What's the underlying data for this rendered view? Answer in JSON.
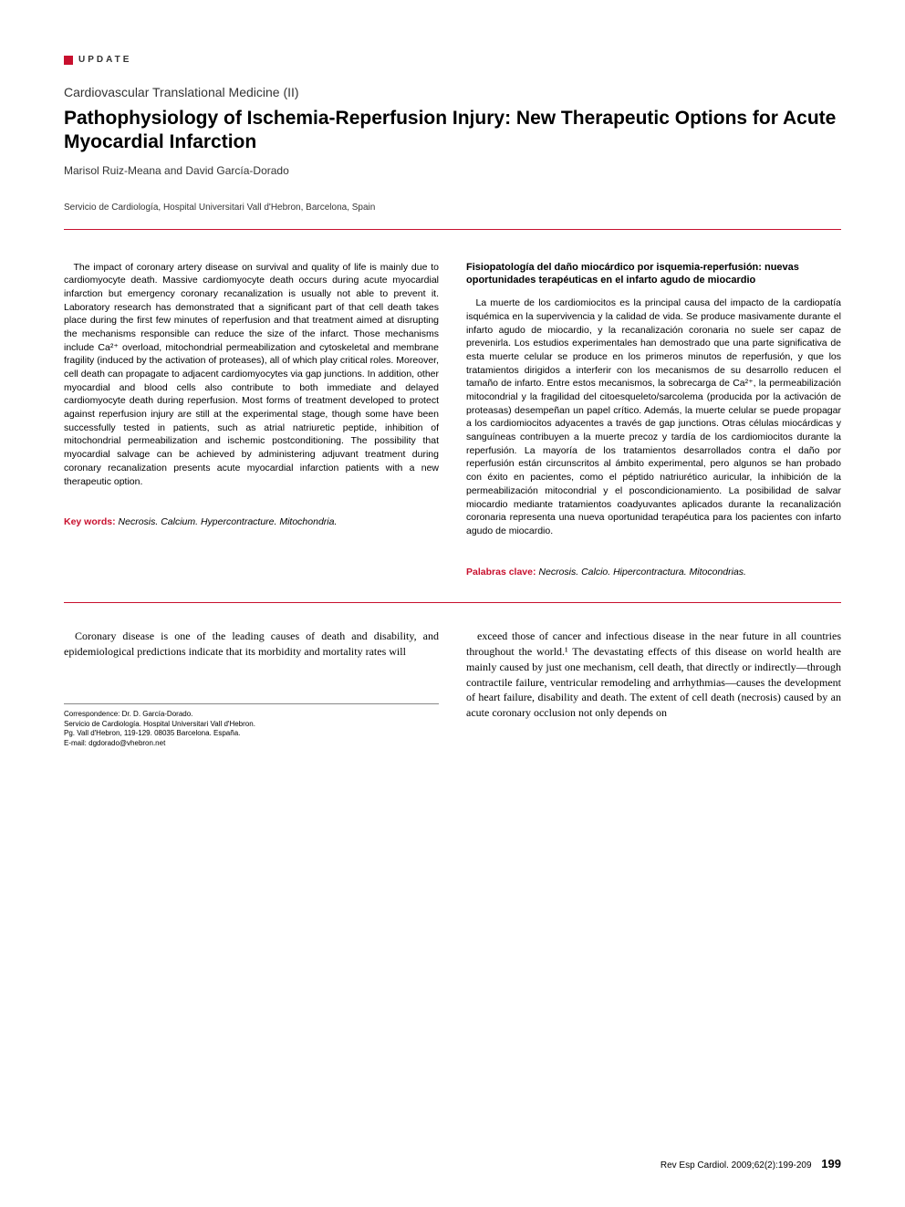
{
  "colors": {
    "accent": "#c8102e",
    "text": "#000000",
    "text_muted": "#333333",
    "rule": "#c8102e",
    "bg": "#ffffff"
  },
  "typography": {
    "sans": "Arial, Helvetica, sans-serif",
    "serif": "Georgia, 'Times New Roman', serif",
    "section_label_size": 10,
    "series_title_size": 14,
    "article_title_size": 21,
    "abstract_size": 10.5,
    "body_size": 12
  },
  "header": {
    "section_label": "UPDATE",
    "series_title": "Cardiovascular Translational Medicine (II)",
    "article_title": "Pathophysiology of Ischemia-Reperfusion Injury: New Therapeutic Options for Acute Myocardial Infarction",
    "authors": "Marisol Ruiz-Meana and David García-Dorado",
    "affiliation": "Servicio de Cardiología, Hospital Universitari Vall d'Hebron, Barcelona, Spain"
  },
  "abstract_en": {
    "text": "The impact of coronary artery disease on survival and quality of life is mainly due to cardiomyocyte death. Massive cardiomyocyte death occurs during acute myocardial infarction but emergency coronary recanalization is usually not able to prevent it. Laboratory research has demonstrated that a significant part of that cell death takes place during the first few minutes of reperfusion and that treatment aimed at disrupting the mechanisms responsible can reduce the size of the infarct. Those mechanisms include Ca²⁺ overload, mitochondrial permeabilization and cytoskeletal and membrane fragility (induced by the activation of proteases), all of which play critical roles. Moreover, cell death can propagate to adjacent cardiomyocytes via gap junctions. In addition, other myocardial and blood cells also contribute to both immediate and delayed cardiomyocyte death during reperfusion. Most forms of treatment developed to protect against reperfusion injury are still at the experimental stage, though some have been successfully tested in patients, such as atrial natriuretic peptide, inhibition of mitochondrial permeabilization and ischemic postconditioning. The possibility that myocardial salvage can be achieved by administering adjuvant treatment during coronary recanalization presents acute myocardial infarction patients with a new therapeutic option.",
    "keywords_label": "Key words:",
    "keywords": "Necrosis. Calcium. Hypercontracture. Mitochondria."
  },
  "abstract_es": {
    "heading": "Fisiopatología del daño miocárdico por isquemia-reperfusión: nuevas oportunidades terapéuticas en el infarto agudo de miocardio",
    "text": "La muerte de los cardiomiocitos es la principal causa del impacto de la cardiopatía isquémica en la supervivencia y la calidad de vida. Se produce masivamente durante el infarto agudo de miocardio, y la recanalización coronaria no suele ser capaz de prevenirla. Los estudios experimentales han demostrado que una parte significativa de esta muerte celular se produce en los primeros minutos de reperfusión, y que los tratamientos dirigidos a interferir con los mecanismos de su desarrollo reducen el tamaño de infarto. Entre estos mecanismos, la sobrecarga de Ca²⁺, la permeabilización mitocondrial y la fragilidad del citoesqueleto/sarcolema (producida por la activación de proteasas) desempeñan un papel crítico. Además, la muerte celular se puede propagar a los cardiomiocitos adyacentes a través de gap junctions. Otras células miocárdicas y sanguíneas contribuyen a la muerte precoz y tardía de los cardiomiocitos durante la reperfusión. La mayoría de los tratamientos desarrollados contra el daño por reperfusión están circunscritos al ámbito experimental, pero algunos se han probado con éxito en pacientes, como el péptido natriurético auricular, la inhibición de la permeabilización mitocondrial y el poscondicionamiento. La posibilidad de salvar miocardio mediante tratamientos coadyuvantes aplicados durante la recanalización coronaria representa una nueva oportunidad terapéutica para los pacientes con infarto agudo de miocardio.",
    "keywords_label": "Palabras clave:",
    "keywords": "Necrosis. Calcio. Hipercontractura. Mitocondrias."
  },
  "body": {
    "col1": "Coronary disease is one of the leading causes of death and disability, and epidemiological predictions indicate that its morbidity and mortality rates will",
    "col2": "exceed those of cancer and infectious disease in the near future in all countries throughout the world.¹ The devastating effects of this disease on world health are mainly caused by just one mechanism, cell death, that directly or indirectly—through contractile failure, ventricular remodeling and arrhythmias—causes the development of heart failure, disability and death. The extent of cell death (necrosis) caused by an acute coronary occlusion not only depends on"
  },
  "correspondence": {
    "lines": [
      "Correspondence: Dr. D. García-Dorado.",
      "Servicio de Cardiología. Hospital Universitari Vall d'Hebron.",
      "Pg. Vall d'Hebron, 119-129. 08035 Barcelona. España.",
      "E-mail: dgdorado@vhebron.net"
    ]
  },
  "footer": {
    "citation": "Rev Esp Cardiol. 2009;62(2):199-209",
    "page": "199"
  }
}
